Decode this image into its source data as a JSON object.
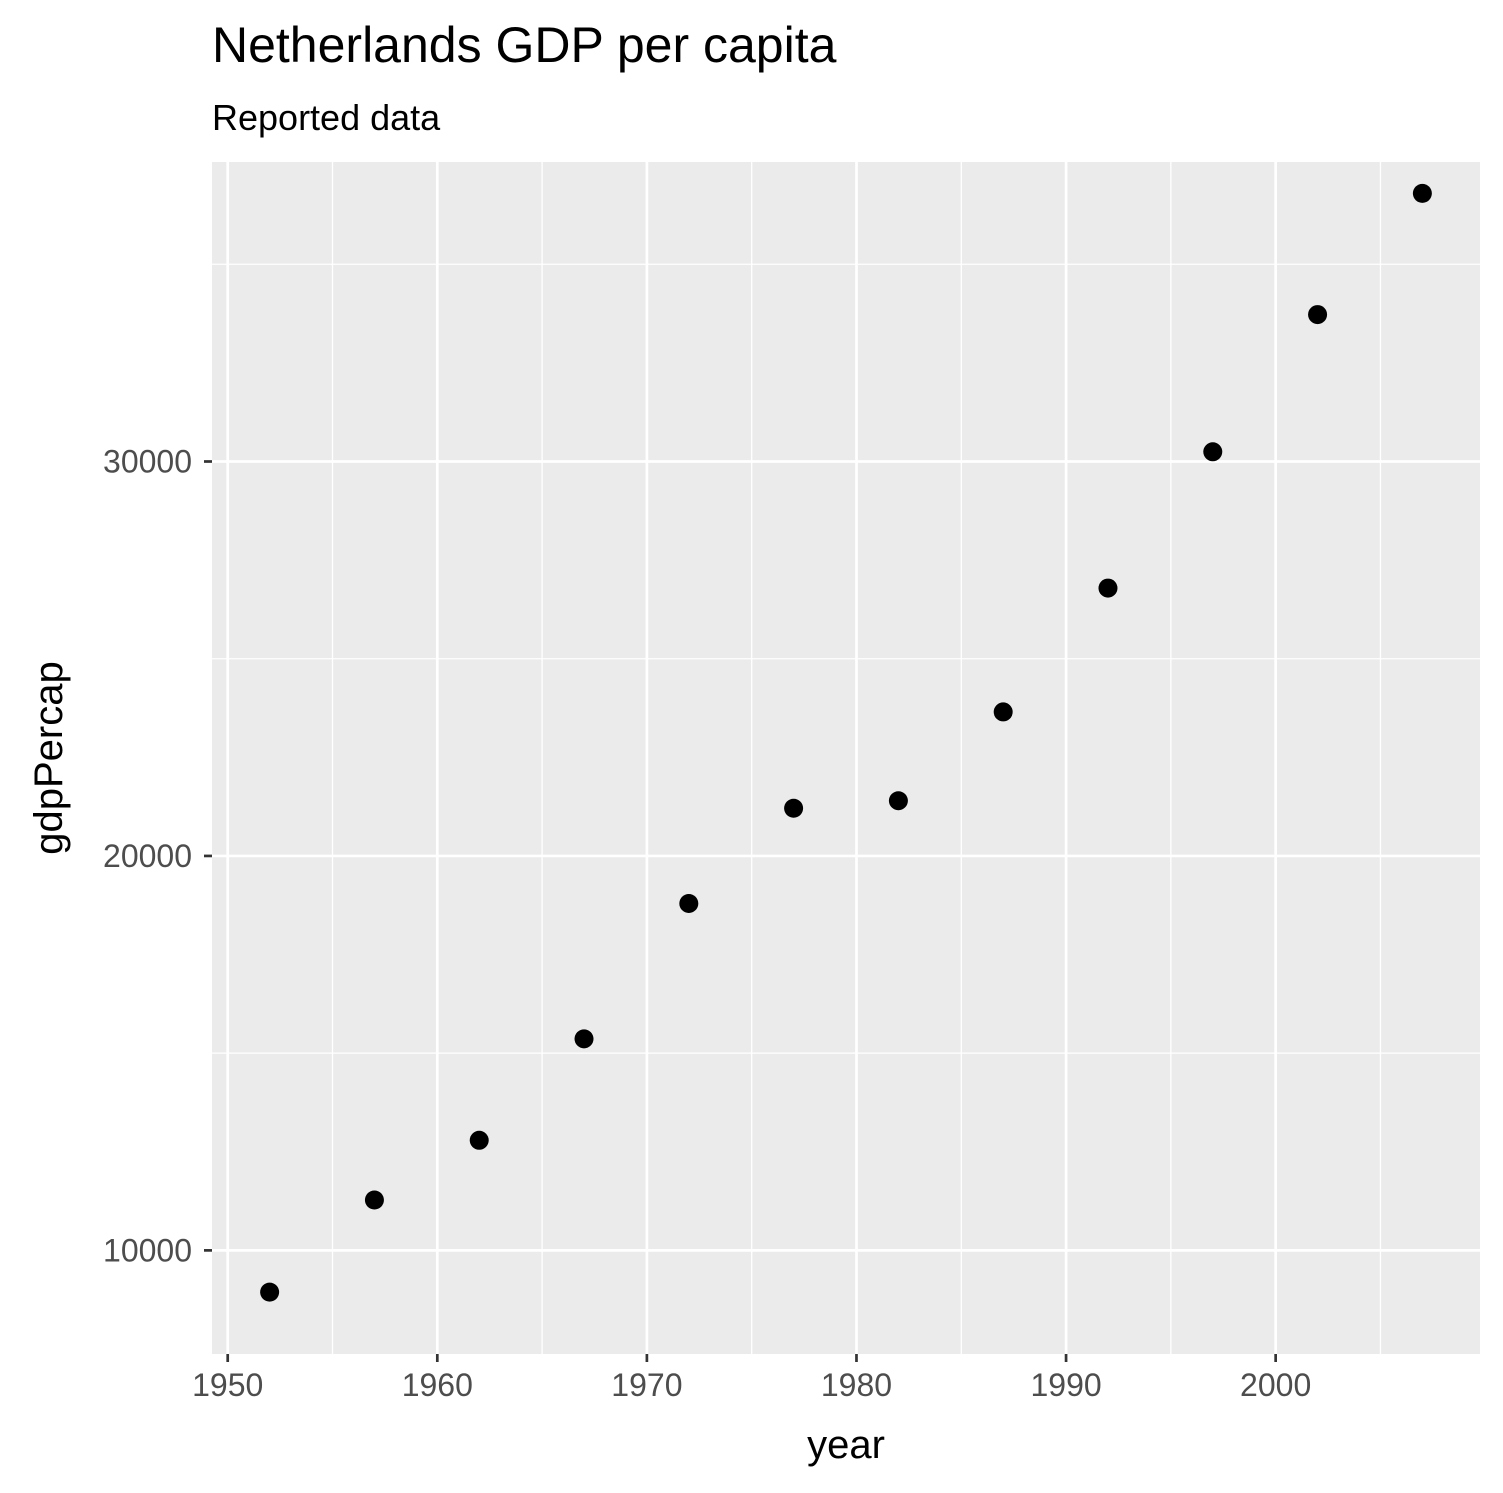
{
  "chart_data": {
    "type": "scatter",
    "title": "Netherlands GDP per capita",
    "subtitle": "Reported data",
    "xlabel": "year",
    "ylabel": "gdpPercap",
    "xlim": [
      1949.25,
      2009.75
    ],
    "ylim": [
      7373,
      37593
    ],
    "xticks": [
      1950,
      1960,
      1970,
      1980,
      1990,
      2000
    ],
    "yticks": [
      10000,
      20000,
      30000
    ],
    "grid": true,
    "legend": "none",
    "point_color": "#000000",
    "panel_background": "#ebebeb",
    "grid_color": "#ffffff",
    "series": [
      {
        "x": [
          1952,
          1957,
          1962,
          1967,
          1972,
          1977,
          1982,
          1987,
          1992,
          1997,
          2002,
          2007
        ],
        "y": [
          8941,
          11277,
          12791,
          15363,
          18795,
          21209,
          21400,
          23651,
          26791,
          30246,
          33725,
          36798
        ]
      }
    ]
  }
}
